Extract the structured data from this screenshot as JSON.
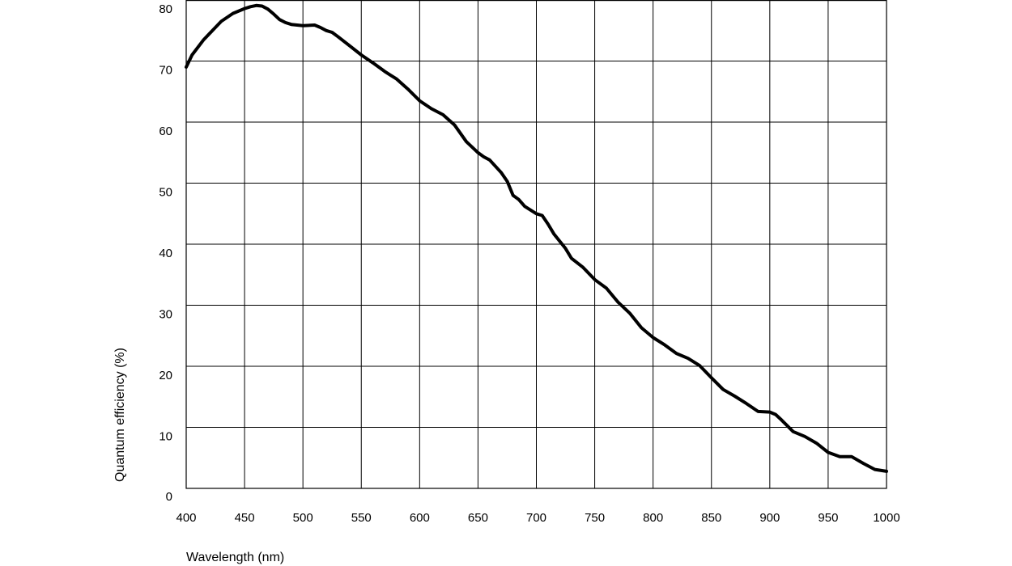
{
  "chart_data": {
    "type": "line",
    "title": "",
    "xlabel": "Wavelength (nm)",
    "ylabel": "Quantum efficiency (%)",
    "xlim": [
      400,
      1000
    ],
    "ylim": [
      0,
      80
    ],
    "x_ticks": [
      400,
      450,
      500,
      550,
      600,
      650,
      700,
      750,
      800,
      850,
      900,
      950,
      1000
    ],
    "y_ticks": [
      0,
      10,
      20,
      30,
      40,
      50,
      60,
      70,
      80
    ],
    "grid": true,
    "legend": "none",
    "line_color": "#000000",
    "series": [
      {
        "x": [
          400,
          405,
          415,
          425,
          430,
          440,
          450,
          455,
          460,
          465,
          470,
          475,
          480,
          485,
          490,
          500,
          510,
          515,
          520,
          525,
          530,
          540,
          550,
          560,
          570,
          575,
          580,
          590,
          600,
          610,
          620,
          630,
          640,
          650,
          655,
          660,
          670,
          675,
          680,
          685,
          690,
          700,
          705,
          710,
          715,
          720,
          725,
          730,
          740,
          750,
          760,
          770,
          780,
          790,
          800,
          810,
          820,
          830,
          840,
          850,
          860,
          870,
          880,
          890,
          900,
          905,
          910,
          920,
          930,
          940,
          950,
          960,
          970,
          980,
          990,
          1000
        ],
        "y": [
          69,
          71,
          73.5,
          75.5,
          76.5,
          77.8,
          78.6,
          78.9,
          79.1,
          79.0,
          78.5,
          77.7,
          76.8,
          76.3,
          76.0,
          75.8,
          75.9,
          75.5,
          75.0,
          74.7,
          74.0,
          72.5,
          71.0,
          69.7,
          68.3,
          67.7,
          67.1,
          65.4,
          63.5,
          62.2,
          61.2,
          59.5,
          56.8,
          55.0,
          54.3,
          53.8,
          51.7,
          50.3,
          48.0,
          47.3,
          46.2,
          45.0,
          44.7,
          43.3,
          41.7,
          40.5,
          39.3,
          37.7,
          36.2,
          34.2,
          32.8,
          30.5,
          28.7,
          26.3,
          24.7,
          23.5,
          22.1,
          21.3,
          20.1,
          18.1,
          16.2,
          15.1,
          13.9,
          12.6,
          12.5,
          12.1,
          11.2,
          9.3,
          8.5,
          7.4,
          5.9,
          5.2,
          5.2,
          4.1,
          3.1,
          2.8
        ]
      }
    ]
  }
}
